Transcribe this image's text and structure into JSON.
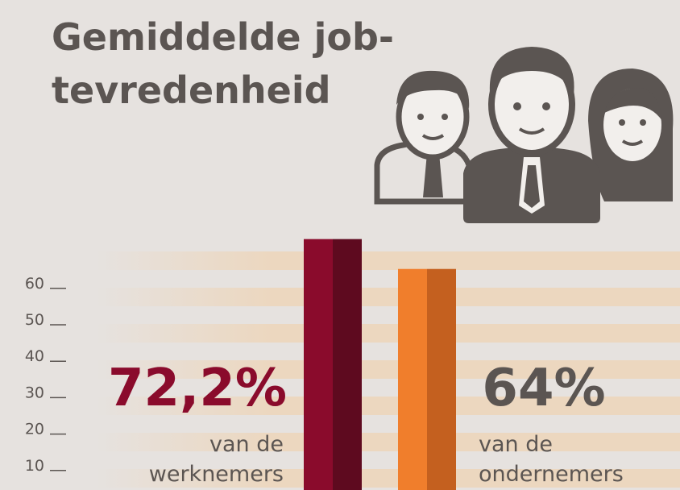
{
  "chart_data": {
    "type": "bar",
    "title": [
      "Gemiddelde job-",
      "tevredenheid"
    ],
    "categories": [
      [
        "van de",
        "werknemers"
      ],
      [
        "van de",
        "ondernemers"
      ]
    ],
    "values": [
      72.2,
      64
    ],
    "value_labels": [
      "72,2%",
      "64%"
    ],
    "colors": [
      "#8a0b2c",
      "#f07e2c"
    ],
    "value_label_colors": [
      "#8a0b2c",
      "#5b5552"
    ],
    "ylim": [
      0,
      75
    ],
    "yticks": [
      10,
      20,
      30,
      40,
      50,
      60
    ]
  }
}
